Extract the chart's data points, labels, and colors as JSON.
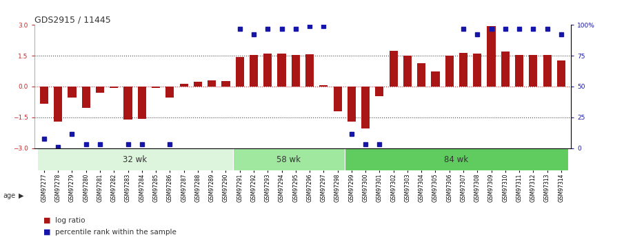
{
  "title": "GDS2915 / 11445",
  "samples": [
    "GSM97277",
    "GSM97278",
    "GSM97279",
    "GSM97280",
    "GSM97281",
    "GSM97282",
    "GSM97283",
    "GSM97284",
    "GSM97285",
    "GSM97286",
    "GSM97287",
    "GSM97288",
    "GSM97289",
    "GSM97290",
    "GSM97291",
    "GSM97292",
    "GSM97293",
    "GSM97294",
    "GSM97295",
    "GSM97296",
    "GSM97297",
    "GSM97298",
    "GSM97299",
    "GSM97300",
    "GSM97301",
    "GSM97302",
    "GSM97303",
    "GSM97304",
    "GSM97305",
    "GSM97306",
    "GSM97307",
    "GSM97308",
    "GSM97309",
    "GSM97310",
    "GSM97311",
    "GSM97312",
    "GSM97313",
    "GSM97314"
  ],
  "log_ratio": [
    -0.85,
    -1.72,
    -0.55,
    -1.05,
    -0.3,
    -0.08,
    -1.62,
    -1.58,
    -0.08,
    -0.55,
    0.12,
    0.22,
    0.3,
    0.28,
    1.45,
    1.55,
    1.6,
    1.6,
    1.55,
    1.57,
    0.06,
    -1.22,
    -1.72,
    -2.05,
    -0.48,
    1.75,
    1.52,
    1.15,
    0.72,
    1.52,
    1.65,
    1.6,
    2.95,
    1.72,
    1.55,
    1.55,
    1.55,
    1.28
  ],
  "percentile_rank": [
    -2.55,
    -2.95,
    -2.3,
    -2.82,
    -2.82,
    null,
    -2.82,
    -2.82,
    null,
    -2.82,
    null,
    null,
    null,
    null,
    2.82,
    2.55,
    2.82,
    2.82,
    2.82,
    2.95,
    2.95,
    null,
    -2.32,
    -2.82,
    -2.82,
    null,
    null,
    null,
    null,
    null,
    2.82,
    2.55,
    2.82,
    2.82,
    2.82,
    2.82,
    2.82,
    2.55
  ],
  "groups": [
    {
      "label": "32 wk",
      "start": 0,
      "end": 14
    },
    {
      "label": "58 wk",
      "start": 14,
      "end": 22
    },
    {
      "label": "84 wk",
      "start": 22,
      "end": 38
    }
  ],
  "group_colors": [
    "#dcf5dc",
    "#a0e8a0",
    "#60cc60"
  ],
  "bar_color": "#aa1515",
  "dot_color": "#1515aa",
  "ylim": [
    -3,
    3
  ],
  "yticks_left": [
    -3,
    -1.5,
    0,
    1.5,
    3
  ],
  "right_tick_positions": [
    -3,
    -1.5,
    0,
    1.5,
    3
  ],
  "right_tick_labels": [
    "0",
    "25",
    "50",
    "75",
    "100%"
  ],
  "hlines_dotted": [
    -1.5,
    1.5
  ],
  "hline_zero_color": "#cc2222",
  "background_color": "#ffffff",
  "age_label": "age",
  "title_fontsize": 9,
  "tick_fontsize": 6.5,
  "bar_width": 0.6
}
